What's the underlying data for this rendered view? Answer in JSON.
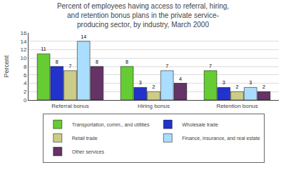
{
  "chart_data": {
    "type": "bar",
    "title": "Percent of employees having access to referral, hiring,\nand retention bonus plans in the private service-\nproducing sector, by industry, March 2000",
    "ylabel": "Percent",
    "categories": [
      "Referral bonus",
      "Hiring bonus",
      "Retention bonus"
    ],
    "series": [
      {
        "name": "Transportation, comm., and utilities",
        "color": "#66cc33",
        "values": [
          11,
          8,
          7
        ]
      },
      {
        "name": "Wholesale trade",
        "color": "#2233cc",
        "values": [
          8,
          3,
          3
        ]
      },
      {
        "name": "Retail trade",
        "color": "#cccc88",
        "values": [
          7,
          2,
          2
        ]
      },
      {
        "name": "Finance, insurance, and real estate",
        "color": "#aaddff",
        "values": [
          14,
          7,
          3
        ]
      },
      {
        "name": "Other services",
        "color": "#663366",
        "values": [
          8,
          4,
          2
        ]
      }
    ],
    "ylim": [
      0,
      16
    ],
    "yticks": [
      0,
      2,
      4,
      6,
      8,
      10,
      12,
      14,
      16
    ],
    "grid": true,
    "data_labels": true,
    "legend": "bottom"
  }
}
